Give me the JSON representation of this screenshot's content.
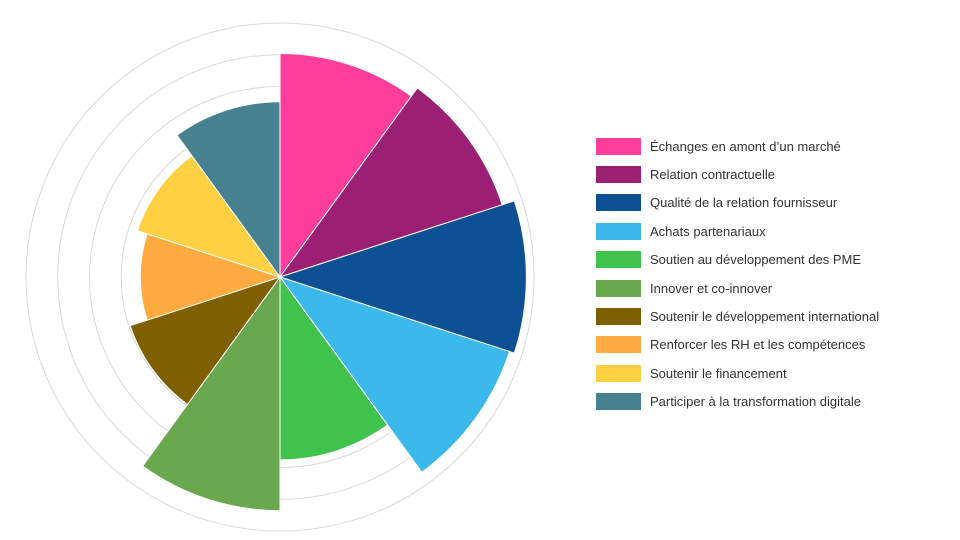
{
  "chart_data": {
    "type": "polar-area",
    "title": "",
    "legend_position": "right",
    "grid": true,
    "rlim": [
      0,
      1
    ],
    "grid_rings": [
      0.5,
      0.625,
      0.75,
      0.875,
      1.0
    ],
    "categories": [
      "Échanges en amont d’un marché",
      "Relation contractuelle",
      "Qualité de la relation fournisseur",
      "Achats partenariaux",
      "Soutien au développement des PME",
      "Innover et co-innover",
      "Soutenir le développement international",
      "Renforcer les RH et les compétences",
      "Soutenir le financement",
      "Participer à la transformation digitale"
    ],
    "values": [
      0.88,
      0.92,
      0.97,
      0.95,
      0.72,
      0.92,
      0.62,
      0.55,
      0.59,
      0.69
    ],
    "colors": [
      "#ff3e9b",
      "#9b1f72",
      "#0d5194",
      "#3bb9eb",
      "#3fc34d",
      "#6aa84f",
      "#7f6000",
      "#ffab40",
      "#ffd042",
      "#45818e"
    ]
  }
}
